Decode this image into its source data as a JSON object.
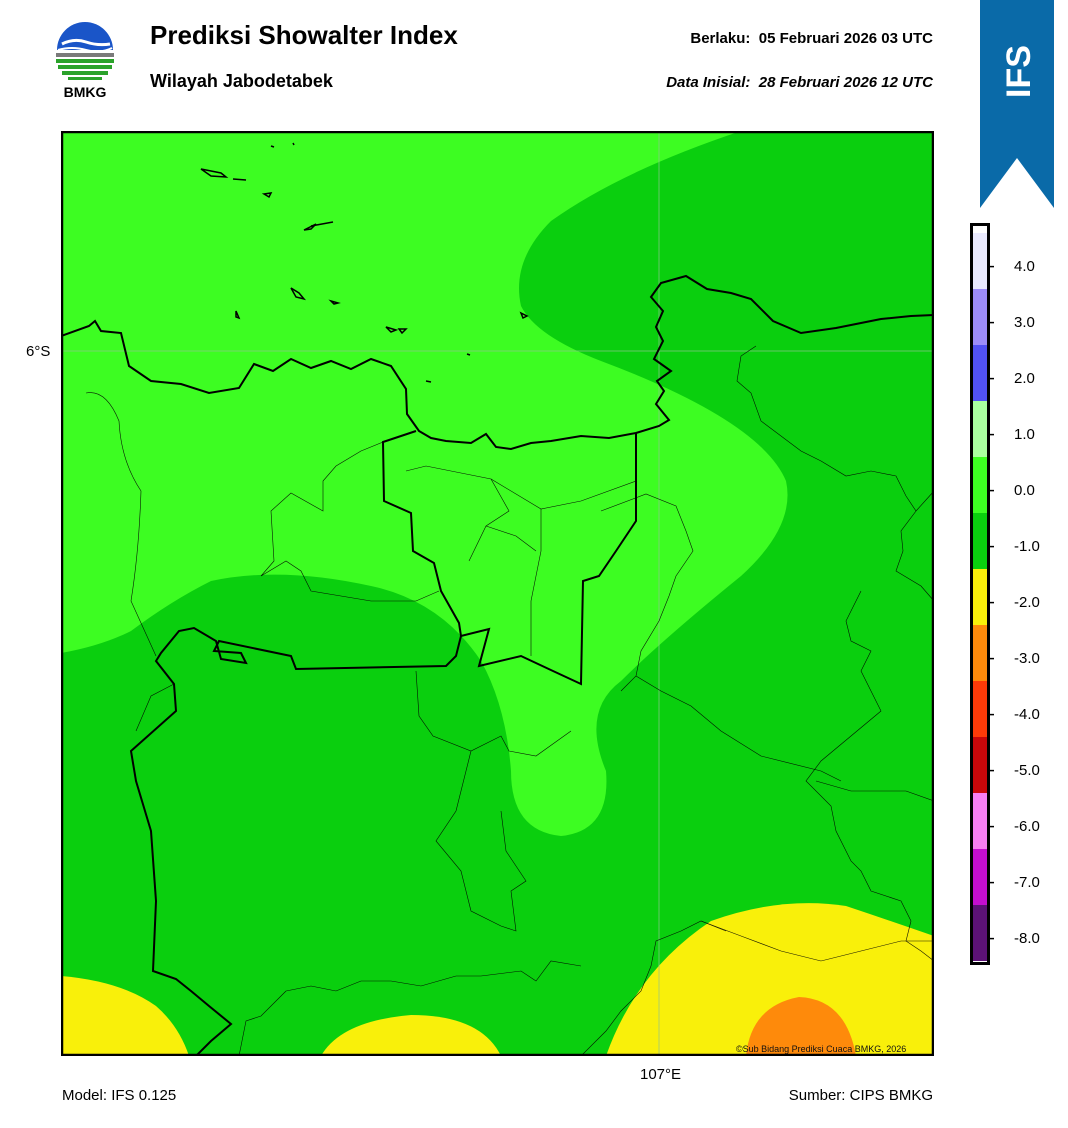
{
  "header": {
    "title": "Prediksi Showalter Index",
    "subtitle": "Wilayah Jabodetabek",
    "valid_label": "Berlaku:",
    "valid_value": "05 Februari 2026 03 UTC",
    "init_label": "Data Inisial:",
    "init_value": "28 Februari 2026 12 UTC"
  },
  "logo": {
    "text": "BMKG",
    "icon": "bmkg-logo-icon"
  },
  "ribbon": {
    "text": "IFS",
    "color": "#0a6aa8"
  },
  "map": {
    "lat_label": "6°S",
    "lon_label": "107°E",
    "copyright": "©Sub Bidang Prediksi Cuaca BMKG, 2026",
    "colors": {
      "light_green": "#3dfd22",
      "dark_green": "#0acf0e",
      "yellow": "#f9f00a",
      "orange": "#fe8a0b"
    }
  },
  "colorbar": {
    "segments": [
      {
        "color": "#eaeafe"
      },
      {
        "color": "#9c8cf8"
      },
      {
        "color": "#5251f2"
      },
      {
        "color": "#aaffa0"
      },
      {
        "color": "#3dfd22"
      },
      {
        "color": "#0acf0e"
      },
      {
        "color": "#f9f00a"
      },
      {
        "color": "#fe8a0b"
      },
      {
        "color": "#fe3a08"
      },
      {
        "color": "#c8070a"
      },
      {
        "color": "#f77ef2"
      },
      {
        "color": "#c40ecf"
      },
      {
        "color": "#5c1276"
      }
    ],
    "labels": [
      "4.0",
      "3.0",
      "2.0",
      "1.0",
      "0.0",
      "-1.0",
      "-2.0",
      "-3.0",
      "-4.0",
      "-5.0",
      "-6.0",
      "-7.0",
      "-8.0"
    ]
  },
  "footer": {
    "model": "Model: IFS 0.125",
    "source": "Sumber: CIPS BMKG"
  }
}
